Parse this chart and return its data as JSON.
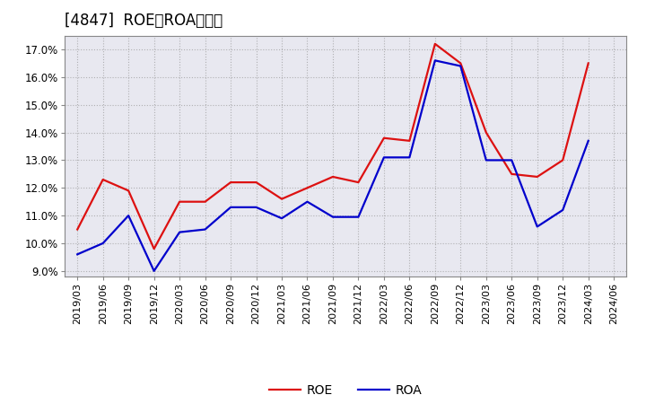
{
  "title": "[4847]  ROE、ROAの推移",
  "x_labels": [
    "2019/03",
    "2019/06",
    "2019/09",
    "2019/12",
    "2020/03",
    "2020/06",
    "2020/09",
    "2020/12",
    "2021/03",
    "2021/06",
    "2021/09",
    "2021/12",
    "2022/03",
    "2022/06",
    "2022/09",
    "2022/12",
    "2023/03",
    "2023/06",
    "2023/09",
    "2023/12",
    "2024/03",
    "2024/06"
  ],
  "ROE": [
    10.5,
    12.3,
    11.9,
    9.8,
    11.5,
    11.5,
    12.2,
    12.2,
    11.6,
    12.0,
    12.4,
    12.2,
    13.8,
    13.7,
    17.2,
    16.5,
    14.0,
    12.5,
    12.4,
    13.0,
    16.5,
    null
  ],
  "ROA": [
    9.6,
    10.0,
    11.0,
    9.0,
    10.4,
    10.5,
    11.3,
    11.3,
    10.9,
    11.5,
    10.95,
    10.95,
    13.1,
    13.1,
    16.6,
    16.4,
    13.0,
    13.0,
    10.6,
    11.2,
    13.7,
    null
  ],
  "ylim": [
    8.8,
    17.5
  ],
  "yticks": [
    9.0,
    10.0,
    11.0,
    12.0,
    13.0,
    14.0,
    15.0,
    16.0,
    17.0
  ],
  "roe_color": "#dd1111",
  "roa_color": "#0000cc",
  "bg_color": "#e8e8f0",
  "grid_color": "#999999",
  "title_fontsize": 12,
  "legend_fontsize": 10,
  "tick_fontsize": 8,
  "ytick_fontsize": 8.5
}
